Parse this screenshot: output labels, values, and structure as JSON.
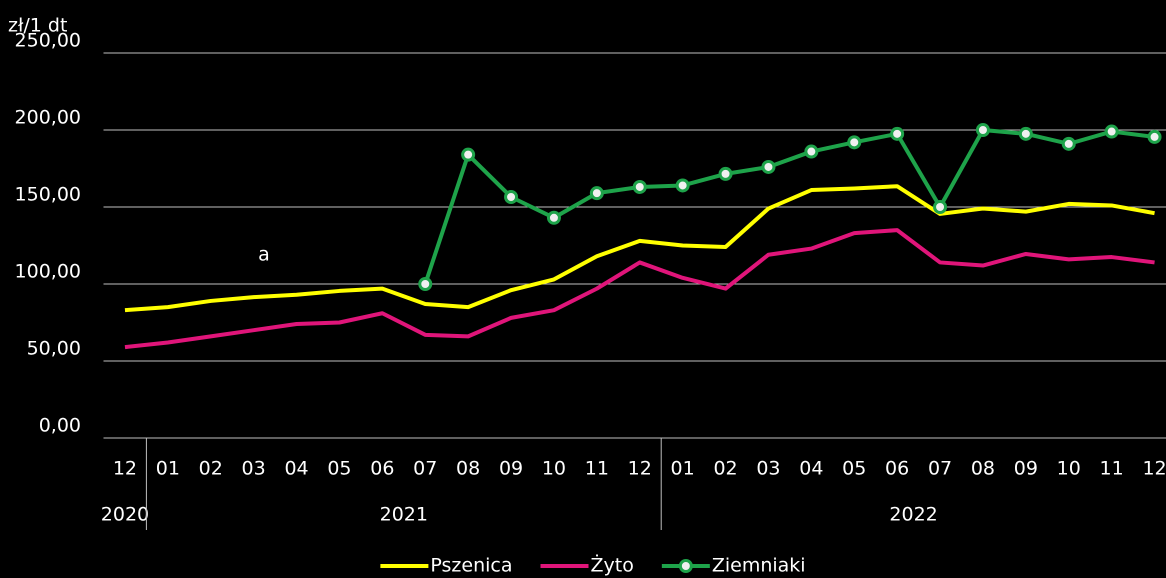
{
  "chart_data": {
    "type": "line",
    "y_label": "zł/1 dt",
    "annotation": "a",
    "categories": [
      "12",
      "01",
      "02",
      "03",
      "04",
      "05",
      "06",
      "07",
      "08",
      "09",
      "10",
      "11",
      "12",
      "01",
      "02",
      "03",
      "04",
      "05",
      "06",
      "07",
      "08",
      "09",
      "10",
      "11",
      "12"
    ],
    "x_groups": [
      {
        "label": "2020",
        "count": 1
      },
      {
        "label": "2021",
        "count": 12
      },
      {
        "label": "2022",
        "count": 12
      }
    ],
    "series": [
      {
        "name": "Pszenica",
        "color": "#ffff00",
        "markers": false,
        "values": [
          83,
          85,
          89,
          91.5,
          93,
          95.5,
          97,
          87,
          85,
          96,
          103,
          118,
          128,
          125,
          124,
          149,
          161,
          162,
          163.5,
          145.5,
          149,
          147,
          152,
          151,
          146
        ]
      },
      {
        "name": "Żyto",
        "color": "#e0157a",
        "markers": false,
        "values": [
          59,
          62,
          66,
          70,
          74,
          75,
          81,
          67,
          66,
          78,
          83,
          97,
          114,
          104,
          97,
          119,
          123,
          133,
          135,
          114,
          112,
          119.5,
          116,
          117.5,
          114
        ]
      },
      {
        "name": "Ziemniaki",
        "color": "#1ea34a",
        "markers": true,
        "values": [
          null,
          null,
          null,
          null,
          null,
          null,
          null,
          100,
          184,
          156.5,
          143,
          159,
          163,
          164,
          171.5,
          176,
          186,
          192,
          197.5,
          150,
          200,
          197.5,
          191,
          199,
          195.5
        ]
      }
    ],
    "ylim": [
      0,
      250
    ],
    "yticks": [
      {
        "value": 0,
        "label": "0,00"
      },
      {
        "value": 50,
        "label": "50,00"
      },
      {
        "value": 100,
        "label": "100,00"
      },
      {
        "value": 150,
        "label": "150,00"
      },
      {
        "value": 200,
        "label": "200,00"
      },
      {
        "value": 250,
        "label": "250,00"
      }
    ],
    "grid": true,
    "legend": "bottom"
  }
}
